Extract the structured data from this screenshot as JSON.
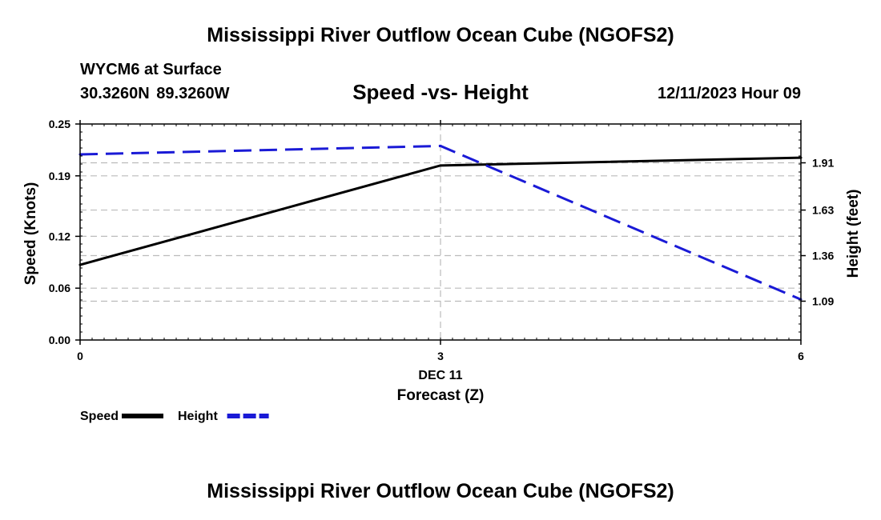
{
  "header": {
    "main_title": "Mississippi River Outflow Ocean Cube (NGOFS2)",
    "station": "WYCM6 at Surface",
    "coordinates": "30.3260N  89.3260W",
    "subtitle": "Speed -vs- Height",
    "datetime": "12/11/2023 Hour 09"
  },
  "footer": {
    "repeat_title": "Mississippi River Outflow Ocean Cube (NGOFS2)"
  },
  "chart_data": {
    "type": "line",
    "title": "Speed -vs- Height",
    "xlabel": "Forecast (Z)",
    "x_date_label": "DEC 11",
    "x": [
      0,
      3,
      6
    ],
    "x_tick_labels": [
      "0",
      "3",
      "6"
    ],
    "xlim": [
      0,
      6
    ],
    "ylabel": "Speed (Knots)",
    "ylim": [
      0,
      0.25
    ],
    "y_ticks": [
      "0.00",
      "0.06",
      "0.12",
      "0.19",
      "0.25"
    ],
    "y2label": "Height (feet)",
    "y2lim": [
      0.86,
      2.14
    ],
    "y2_ticks": [
      "1.09",
      "1.36",
      "1.63",
      "1.91"
    ],
    "grid": true,
    "legend_position": "bottom-left",
    "series": [
      {
        "name": "Speed",
        "axis": "left",
        "values": [
          0.087,
          0.202,
          0.211
        ],
        "color": "#000000",
        "style": "solid"
      },
      {
        "name": "Height",
        "axis": "right",
        "values": [
          1.96,
          2.01,
          1.1
        ],
        "color": "#1a1ad6",
        "style": "dashed"
      }
    ]
  }
}
